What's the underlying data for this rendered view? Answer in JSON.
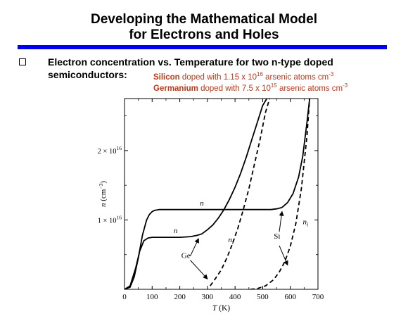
{
  "slide": {
    "title_line1": "Developing the Mathematical Model",
    "title_line2": "for Electrons and Holes",
    "bullet_line1": "Electron concentration vs. Temperature for two n-type doped",
    "bullet_line2": "semiconductors:",
    "si_label": "Silicon",
    "si_text": " doped with 1.15 x 10",
    "si_exp": "16",
    "si_unit": " arsenic atoms cm",
    "si_unit_exp": "-3",
    "ge_label": "Germanium",
    "ge_text": " doped with 7.5 x 10",
    "ge_exp": "15",
    "ge_unit": " arsenic atoms cm",
    "ge_unit_exp": "-3"
  },
  "colors": {
    "title_bar": "#0000ee",
    "red_text": "#c0391b",
    "curve": "#000000"
  },
  "chart_data": {
    "type": "line",
    "xlabel": "T (K)",
    "ylabel": "n (cm−3)",
    "xlim": [
      0,
      700
    ],
    "ylim": [
      0,
      2.75e+16
    ],
    "x_ticks": [
      0,
      100,
      200,
      300,
      400,
      500,
      600,
      700
    ],
    "y_ticks": [
      {
        "value": 1e+16,
        "label": "1 × 10"
      },
      {
        "value": 2e+16,
        "label": "2 × 10"
      }
    ],
    "y_tick_exp": "16",
    "series": [
      {
        "name": "n",
        "style": "solid",
        "x": [
          0,
          20,
          35,
          50,
          65,
          80,
          90,
          100,
          110,
          125,
          150,
          200,
          300,
          400,
          450,
          490,
          510,
          530,
          550,
          570
        ],
        "y": [
          0,
          300000000000000.0,
          1800000000000000.0,
          4500000000000000.0,
          7800000000000000.0,
          1e+16,
          1.08e+16,
          1.12e+16,
          1.14e+16,
          1.15e+16,
          1.15e+16,
          1.15e+16,
          1.15e+16,
          1.15e+16,
          1.15e+16,
          1.15e+16,
          1.15e+16,
          1.15e+16,
          1.16e+16,
          1.18e+16
        ]
      },
      {
        "name": "n",
        "style": "solid",
        "x": [
          0,
          20,
          40,
          55,
          70,
          85,
          100,
          120,
          150,
          200,
          240,
          265
        ],
        "y": [
          0,
          500000000000000.0,
          3000000000000000.0,
          5500000000000000.0,
          7000000000000000.0,
          7400000000000000.0,
          7500000000000000.0,
          7500000000000000.0,
          7500000000000000.0,
          7500000000000000.0,
          7600000000000000.0,
          7800000000000000.0
        ]
      },
      {
        "name": "ni",
        "style": "dashed",
        "x": [
          310,
          330,
          350,
          370,
          390,
          410,
          430,
          450,
          470,
          490,
          510,
          525
        ],
        "y": [
          500000000000000.0,
          1600000000000000.0,
          2800000000000000.0,
          4500000000000000.0,
          6500000000000000.0,
          8800000000000000.0,
          1.15e+16,
          1.45e+16,
          1.8e+16,
          2.15e+16,
          2.55e+16,
          2.75e+16
        ]
      },
      {
        "name": "ni",
        "style": "dashed",
        "x": [
          455,
          480,
          510,
          540,
          560,
          580,
          600,
          620,
          640,
          660,
          670
        ],
        "y": [
          0.0,
          100000000000000.0,
          500000000000000.0,
          1400000000000000.0,
          2500000000000000.0,
          4000000000000000.0,
          6200000000000000.0,
          9500000000000000.0,
          1.45e+16,
          2.2e+16,
          2.75e+16
        ]
      },
      {
        "name": "n-ge-rise",
        "style": "solid",
        "x": [
          265,
          280,
          300,
          320,
          340,
          360,
          380,
          400,
          420,
          440,
          460,
          480,
          500,
          515
        ],
        "y": [
          7800000000000000.0,
          8000000000000000.0,
          8600000000000000.0,
          9300000000000000.0,
          1.03e+16,
          1.15e+16,
          1.3e+16,
          1.47e+16,
          1.67e+16,
          1.9e+16,
          2.15e+16,
          2.4e+16,
          2.65e+16,
          2.75e+16
        ]
      },
      {
        "name": "n-si-rise",
        "style": "solid",
        "x": [
          570,
          590,
          610,
          630,
          645,
          660,
          670
        ],
        "y": [
          1.18e+16,
          1.25e+16,
          1.38e+16,
          1.62e+16,
          1.92e+16,
          2.4e+16,
          2.75e+16
        ]
      }
    ],
    "annotations": [
      {
        "text": "n",
        "x": 280,
        "y": 1.21e+16,
        "style": "italic"
      },
      {
        "text": "n",
        "x": 185,
        "y": 8100000000000000.0,
        "style": "italic"
      },
      {
        "text": "n",
        "x": 385,
        "y": 6800000000000000.0,
        "style": "italic",
        "sub": "i"
      },
      {
        "text": "n",
        "x": 655,
        "y": 9400000000000000.0,
        "style": "italic",
        "sub": "i"
      },
      {
        "text": "Si",
        "x": 552,
        "y": 7300000000000000.0,
        "style": "normal"
      },
      {
        "text": "Ge",
        "x": 222,
        "y": 4500000000000000.0,
        "style": "normal"
      }
    ],
    "arrows": [
      {
        "from_x": 238,
        "from_y": 4800000000000000.0,
        "to_x": 268,
        "to_y": 7300000000000000.0
      },
      {
        "from_x": 238,
        "from_y": 4200000000000000.0,
        "to_x": 300,
        "to_y": 1500000000000000.0
      },
      {
        "from_x": 560,
        "from_y": 8300000000000000.0,
        "to_x": 570,
        "to_y": 1.12e+16
      },
      {
        "from_x": 560,
        "from_y": 6300000000000000.0,
        "to_x": 590,
        "to_y": 3500000000000000.0
      }
    ]
  }
}
